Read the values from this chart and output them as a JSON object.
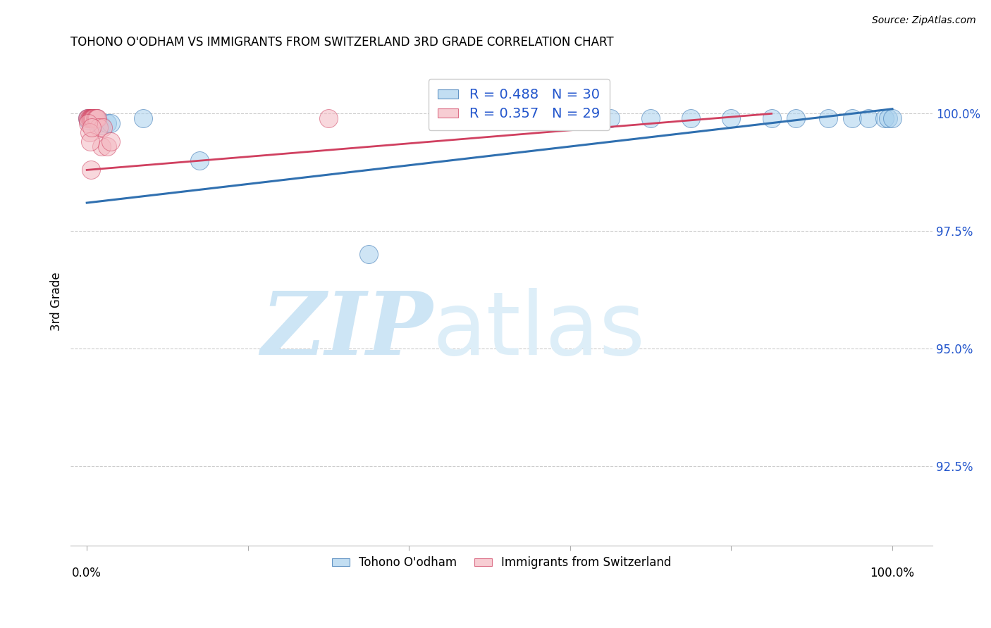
{
  "title": "TOHONO O'ODHAM VS IMMIGRANTS FROM SWITZERLAND 3RD GRADE CORRELATION CHART",
  "source": "Source: ZipAtlas.com",
  "ylabel": "3rd Grade",
  "legend_blue_r": "R = 0.488",
  "legend_blue_n": "N = 30",
  "legend_pink_r": "R = 0.357",
  "legend_pink_n": "N = 29",
  "legend_blue_label": "Tohono O'odham",
  "legend_pink_label": "Immigrants from Switzerland",
  "blue_color": "#a8d0ed",
  "pink_color": "#f4b8c1",
  "trendline_blue": "#3070b0",
  "trendline_pink": "#d04060",
  "ytick_labels": [
    "100.0%",
    "97.5%",
    "95.0%",
    "92.5%"
  ],
  "ytick_values": [
    1.0,
    0.975,
    0.95,
    0.925
  ],
  "ymin": 0.908,
  "ymax": 1.012,
  "xmin": -0.02,
  "xmax": 1.05,
  "blue_scatter_x": [
    0.001,
    0.002,
    0.003,
    0.004,
    0.005,
    0.006,
    0.007,
    0.008,
    0.009,
    0.012,
    0.015,
    0.018,
    0.025,
    0.03,
    0.07,
    0.14,
    0.35,
    0.6,
    0.65,
    0.7,
    0.75,
    0.8,
    0.85,
    0.88,
    0.92,
    0.95,
    0.97,
    0.99,
    0.995,
    1.0
  ],
  "blue_scatter_y": [
    0.999,
    0.9985,
    0.999,
    0.999,
    0.999,
    0.999,
    0.999,
    0.999,
    0.999,
    0.999,
    0.998,
    0.9975,
    0.998,
    0.998,
    0.999,
    0.99,
    0.97,
    0.999,
    0.999,
    0.999,
    0.999,
    0.999,
    0.999,
    0.999,
    0.999,
    0.999,
    0.999,
    0.999,
    0.999,
    0.999
  ],
  "pink_scatter_x": [
    0.001,
    0.002,
    0.003,
    0.004,
    0.005,
    0.005,
    0.006,
    0.006,
    0.007,
    0.007,
    0.008,
    0.008,
    0.009,
    0.01,
    0.011,
    0.012,
    0.013,
    0.015,
    0.018,
    0.02,
    0.025,
    0.03,
    0.002,
    0.003,
    0.004,
    0.005,
    0.006,
    0.3,
    0.5
  ],
  "pink_scatter_y": [
    0.999,
    0.999,
    0.999,
    0.999,
    0.999,
    0.999,
    0.999,
    0.999,
    0.999,
    0.999,
    0.999,
    0.999,
    0.999,
    0.999,
    0.999,
    0.999,
    0.999,
    0.997,
    0.993,
    0.997,
    0.993,
    0.994,
    0.998,
    0.996,
    0.994,
    0.988,
    0.997,
    0.999,
    0.999
  ],
  "blue_trend_x0": 0.0,
  "blue_trend_x1": 1.0,
  "blue_trend_y0": 0.981,
  "blue_trend_y1": 1.001,
  "pink_trend_x0": 0.0,
  "pink_trend_x1": 0.85,
  "pink_trend_y0": 0.988,
  "pink_trend_y1": 1.0,
  "watermark_zip": "ZIP",
  "watermark_atlas": "atlas",
  "watermark_color": "#cde5f5",
  "background_color": "#ffffff",
  "grid_color": "#cccccc",
  "title_fontsize": 12,
  "source_fontsize": 10,
  "tick_label_fontsize": 12,
  "legend_fontsize": 14
}
